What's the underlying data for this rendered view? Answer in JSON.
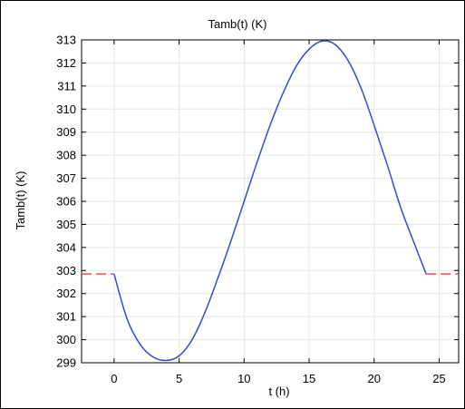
{
  "chart_data": {
    "type": "line",
    "title": "Tamb(t) (K)",
    "xlabel": "t (h)",
    "ylabel": "Tamb(t) (K)",
    "xlim": [
      -2.5,
      26.5
    ],
    "ylim": [
      299,
      313
    ],
    "xticks": [
      0,
      5,
      10,
      15,
      20,
      25
    ],
    "yticks": [
      299,
      300,
      301,
      302,
      303,
      304,
      305,
      306,
      307,
      308,
      309,
      310,
      311,
      312,
      313
    ],
    "grid": true,
    "series": [
      {
        "color": "#2a4fd6",
        "style": "solid",
        "points": [
          [
            0,
            302.85
          ],
          [
            1,
            300.9
          ],
          [
            2,
            299.8
          ],
          [
            3,
            299.25
          ],
          [
            4,
            299.1
          ],
          [
            5,
            299.3
          ],
          [
            6,
            300.0
          ],
          [
            7,
            301.2
          ],
          [
            8,
            302.7
          ],
          [
            9,
            304.3
          ],
          [
            10,
            306.0
          ],
          [
            11,
            307.7
          ],
          [
            12,
            309.3
          ],
          [
            13,
            310.7
          ],
          [
            14,
            311.85
          ],
          [
            15,
            312.6
          ],
          [
            16,
            312.95
          ],
          [
            17,
            312.8
          ],
          [
            18,
            312.1
          ],
          [
            19,
            310.9
          ],
          [
            20,
            309.3
          ],
          [
            21,
            307.6
          ],
          [
            22,
            305.8
          ],
          [
            23,
            304.3
          ],
          [
            24,
            302.85
          ]
        ]
      },
      {
        "color": "#e05050",
        "style": "dashed",
        "points": [
          [
            -2.5,
            302.85
          ],
          [
            0,
            302.85
          ]
        ]
      },
      {
        "color": "#e05050",
        "style": "dashed",
        "points": [
          [
            24,
            302.85
          ],
          [
            26.5,
            302.85
          ]
        ]
      }
    ]
  }
}
